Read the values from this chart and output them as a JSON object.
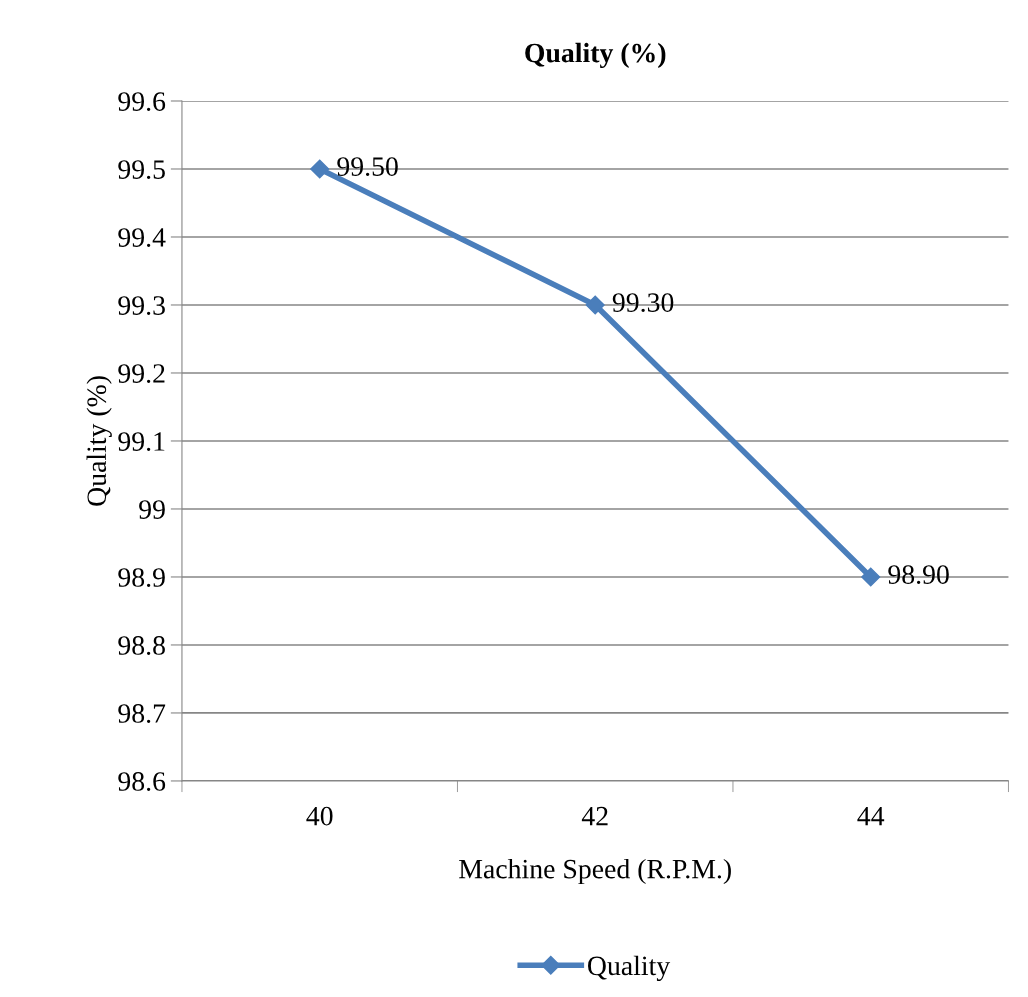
{
  "chart_data": {
    "type": "line",
    "title": "Quality (%)",
    "xlabel": "Machine Speed (R.P.M.)",
    "ylabel": "Quality (%)",
    "categories": [
      "40",
      "42",
      "44"
    ],
    "series": [
      {
        "name": "Quality",
        "color": "#4a7ebb",
        "values": [
          99.5,
          99.3,
          98.9
        ],
        "value_labels": [
          "99.50",
          "99.30",
          "98.90"
        ]
      }
    ],
    "ylim": [
      98.6,
      99.6
    ],
    "yticks": [
      {
        "value": 98.6,
        "label": "98.6"
      },
      {
        "value": 98.7,
        "label": "98.7"
      },
      {
        "value": 98.8,
        "label": "98.8"
      },
      {
        "value": 98.9,
        "label": "98.9"
      },
      {
        "value": 99.0,
        "label": "99"
      },
      {
        "value": 99.1,
        "label": "99.1"
      },
      {
        "value": 99.2,
        "label": "99.2"
      },
      {
        "value": 99.3,
        "label": "99.3"
      },
      {
        "value": 99.4,
        "label": "99.4"
      },
      {
        "value": 99.5,
        "label": "99.5"
      },
      {
        "value": 99.6,
        "label": "99.6"
      }
    ],
    "grid": "y",
    "legend": "bottom",
    "marker": "diamond",
    "line_style": "solid"
  }
}
